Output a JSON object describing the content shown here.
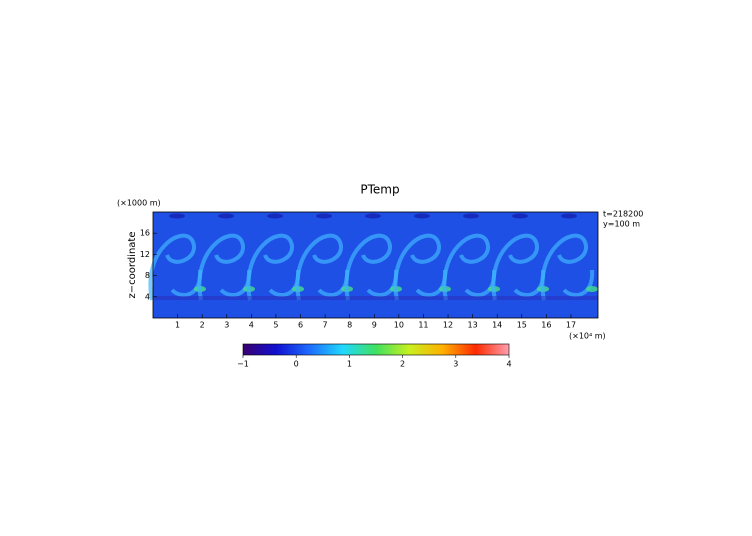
{
  "chart_data": {
    "type": "heatmap",
    "title": "PTemp",
    "ylabel": "z−coordinate",
    "yunit": "(×1000 m)",
    "xunit": "(×10⁴ m)",
    "annotations": [
      "t=218200",
      "y=100 m"
    ],
    "xlim": [
      0,
      18.1
    ],
    "xticks": [
      1,
      2,
      3,
      4,
      5,
      6,
      7,
      8,
      9,
      10,
      11,
      12,
      13,
      14,
      15,
      16,
      17
    ],
    "ylim": [
      0,
      20
    ],
    "yticks": [
      4,
      8,
      12,
      16
    ],
    "colorbar": {
      "lim": [
        -1,
        4
      ],
      "ticks": [
        {
          "value": -1,
          "label": "−1"
        },
        0,
        1,
        2,
        3,
        4
      ],
      "colormap": [
        "#3a0070",
        "#1010d0",
        "#1e6cff",
        "#20d8ff",
        "#40e060",
        "#c8f020",
        "#ffb000",
        "#ff2a00",
        "#ff9fb0"
      ]
    }
  }
}
